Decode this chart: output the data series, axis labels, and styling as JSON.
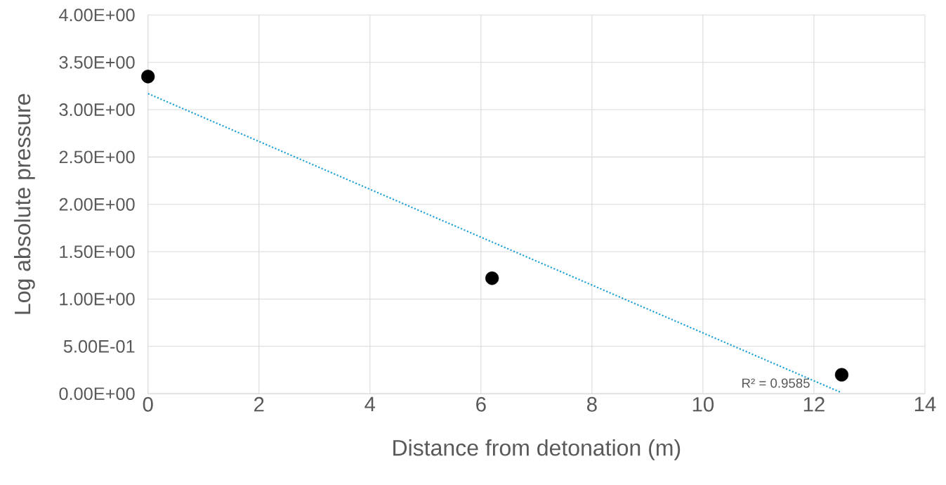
{
  "chart_data": {
    "type": "scatter",
    "xlabel": "Distance from detonation (m)",
    "ylabel": "Log absolute pressure",
    "series": [
      {
        "color": "#000000",
        "x": [
          0,
          6.2,
          12.5
        ],
        "values": [
          3.35,
          1.22,
          0.2
        ]
      },
      {
        "type": "line",
        "color": "#1a9fd4",
        "line_style": "dotted",
        "x": [
          0,
          12.5
        ],
        "values": [
          3.17,
          0.01
        ]
      }
    ],
    "annotations": [
      "R² = 0.9585"
    ],
    "xlim": [
      0,
      14
    ],
    "ylim": [
      0,
      4
    ],
    "xticks": [
      0,
      2,
      4,
      6,
      8,
      10,
      12,
      14
    ],
    "yticks": [
      {
        "value": 0,
        "label": "0.00E+00"
      },
      {
        "value": 0.5,
        "label": "5.00E-01"
      },
      {
        "value": 1,
        "label": "1.00E+00"
      },
      {
        "value": 1.5,
        "label": "1.50E+00"
      },
      {
        "value": 2,
        "label": "2.00E+00"
      },
      {
        "value": 2.5,
        "label": "2.50E+00"
      },
      {
        "value": 3,
        "label": "3.00E+00"
      },
      {
        "value": 3.5,
        "label": "3.50E+00"
      },
      {
        "value": 4,
        "label": "4.00E+00"
      }
    ],
    "grid": true
  }
}
